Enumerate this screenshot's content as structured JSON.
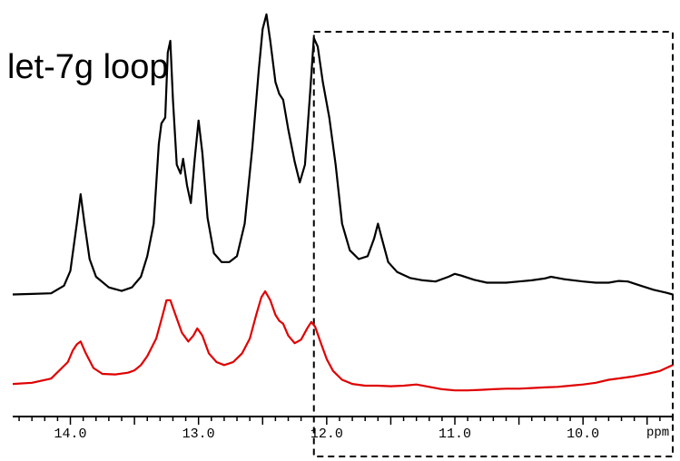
{
  "chart_data": {
    "type": "line",
    "title": "let-7g loop",
    "xlabel": "ppm",
    "ylabel": "",
    "x_reversed": true,
    "xlim": [
      14.45,
      9.3
    ],
    "grid": false,
    "legend": "none",
    "x_ticks": [
      {
        "value": 14.0,
        "label": "14.0"
      },
      {
        "value": 13.0,
        "label": "13.0"
      },
      {
        "value": 12.0,
        "label": "12.0"
      },
      {
        "value": 11.0,
        "label": "11.0"
      },
      {
        "value": 10.0,
        "label": "10.0"
      }
    ],
    "highlight_region": {
      "x_from": 12.1,
      "x_to": 9.3,
      "style": "dashed box"
    },
    "series": [
      {
        "color": "#000000",
        "points": [
          [
            14.45,
            0.3
          ],
          [
            14.3,
            0.31
          ],
          [
            14.15,
            0.32
          ],
          [
            14.05,
            0.45
          ],
          [
            14.0,
            0.7
          ],
          [
            13.95,
            1.5
          ],
          [
            13.92,
            2.0
          ],
          [
            13.89,
            1.5
          ],
          [
            13.85,
            0.9
          ],
          [
            13.8,
            0.6
          ],
          [
            13.7,
            0.42
          ],
          [
            13.6,
            0.36
          ],
          [
            13.52,
            0.42
          ],
          [
            13.45,
            0.6
          ],
          [
            13.4,
            0.95
          ],
          [
            13.35,
            1.5
          ],
          [
            13.31,
            2.85
          ],
          [
            13.29,
            3.2
          ],
          [
            13.26,
            3.3
          ],
          [
            13.24,
            4.4
          ],
          [
            13.22,
            4.6
          ],
          [
            13.2,
            3.6
          ],
          [
            13.17,
            2.5
          ],
          [
            13.14,
            2.35
          ],
          [
            13.12,
            2.6
          ],
          [
            13.09,
            2.15
          ],
          [
            13.06,
            1.85
          ],
          [
            13.03,
            2.6
          ],
          [
            13.0,
            3.25
          ],
          [
            12.97,
            2.7
          ],
          [
            12.93,
            1.6
          ],
          [
            12.88,
            1.0
          ],
          [
            12.82,
            0.85
          ],
          [
            12.76,
            0.85
          ],
          [
            12.7,
            0.95
          ],
          [
            12.64,
            1.5
          ],
          [
            12.58,
            2.8
          ],
          [
            12.53,
            4.1
          ],
          [
            12.5,
            4.8
          ],
          [
            12.47,
            5.05
          ],
          [
            12.44,
            4.6
          ],
          [
            12.4,
            3.9
          ],
          [
            12.37,
            3.7
          ],
          [
            12.34,
            3.6
          ],
          [
            12.3,
            3.1
          ],
          [
            12.25,
            2.55
          ],
          [
            12.21,
            2.2
          ],
          [
            12.17,
            2.5
          ],
          [
            12.13,
            3.7
          ],
          [
            12.1,
            4.65
          ],
          [
            12.07,
            4.5
          ],
          [
            12.03,
            3.9
          ],
          [
            11.98,
            3.3
          ],
          [
            11.93,
            2.5
          ],
          [
            11.88,
            1.5
          ],
          [
            11.82,
            1.05
          ],
          [
            11.75,
            0.9
          ],
          [
            11.68,
            0.95
          ],
          [
            11.63,
            1.25
          ],
          [
            11.6,
            1.5
          ],
          [
            11.57,
            1.25
          ],
          [
            11.52,
            0.85
          ],
          [
            11.45,
            0.68
          ],
          [
            11.35,
            0.58
          ],
          [
            11.25,
            0.54
          ],
          [
            11.15,
            0.52
          ],
          [
            11.05,
            0.6
          ],
          [
            11.0,
            0.65
          ],
          [
            10.95,
            0.62
          ],
          [
            10.85,
            0.55
          ],
          [
            10.75,
            0.5
          ],
          [
            10.6,
            0.5
          ],
          [
            10.5,
            0.52
          ],
          [
            10.4,
            0.54
          ],
          [
            10.3,
            0.57
          ],
          [
            10.25,
            0.6
          ],
          [
            10.15,
            0.56
          ],
          [
            10.0,
            0.52
          ],
          [
            9.9,
            0.5
          ],
          [
            9.8,
            0.5
          ],
          [
            9.72,
            0.53
          ],
          [
            9.65,
            0.52
          ],
          [
            9.55,
            0.45
          ],
          [
            9.45,
            0.38
          ],
          [
            9.35,
            0.33
          ],
          [
            9.3,
            0.3
          ]
        ]
      },
      {
        "color": "#e00000",
        "points": [
          [
            14.45,
            0.03
          ],
          [
            14.3,
            0.05
          ],
          [
            14.15,
            0.12
          ],
          [
            14.02,
            0.4
          ],
          [
            13.98,
            0.6
          ],
          [
            13.95,
            0.7
          ],
          [
            13.92,
            0.75
          ],
          [
            13.88,
            0.55
          ],
          [
            13.82,
            0.3
          ],
          [
            13.75,
            0.2
          ],
          [
            13.65,
            0.19
          ],
          [
            13.55,
            0.22
          ],
          [
            13.5,
            0.26
          ],
          [
            13.45,
            0.35
          ],
          [
            13.4,
            0.5
          ],
          [
            13.33,
            0.8
          ],
          [
            13.28,
            1.2
          ],
          [
            13.25,
            1.45
          ],
          [
            13.22,
            1.45
          ],
          [
            13.18,
            1.2
          ],
          [
            13.13,
            0.9
          ],
          [
            13.08,
            0.75
          ],
          [
            13.04,
            0.85
          ],
          [
            13.01,
            0.97
          ],
          [
            12.97,
            0.85
          ],
          [
            12.92,
            0.55
          ],
          [
            12.86,
            0.4
          ],
          [
            12.8,
            0.35
          ],
          [
            12.73,
            0.4
          ],
          [
            12.66,
            0.55
          ],
          [
            12.6,
            0.8
          ],
          [
            12.55,
            1.2
          ],
          [
            12.51,
            1.5
          ],
          [
            12.48,
            1.6
          ],
          [
            12.44,
            1.45
          ],
          [
            12.4,
            1.2
          ],
          [
            12.37,
            1.1
          ],
          [
            12.34,
            1.05
          ],
          [
            12.3,
            0.85
          ],
          [
            12.25,
            0.72
          ],
          [
            12.2,
            0.78
          ],
          [
            12.15,
            0.98
          ],
          [
            12.12,
            1.08
          ],
          [
            12.09,
            1.0
          ],
          [
            12.05,
            0.75
          ],
          [
            12.0,
            0.45
          ],
          [
            11.95,
            0.25
          ],
          [
            11.88,
            0.1
          ],
          [
            11.8,
            0.03
          ],
          [
            11.7,
            0.0
          ],
          [
            11.6,
            0.0
          ],
          [
            11.5,
            -0.01
          ],
          [
            11.4,
            0.0
          ],
          [
            11.3,
            0.02
          ],
          [
            11.2,
            -0.02
          ],
          [
            11.1,
            -0.06
          ],
          [
            11.0,
            -0.08
          ],
          [
            10.9,
            -0.08
          ],
          [
            10.8,
            -0.07
          ],
          [
            10.7,
            -0.06
          ],
          [
            10.6,
            -0.05
          ],
          [
            10.5,
            -0.05
          ],
          [
            10.4,
            -0.04
          ],
          [
            10.3,
            -0.03
          ],
          [
            10.2,
            -0.02
          ],
          [
            10.1,
            0.0
          ],
          [
            10.0,
            0.02
          ],
          [
            9.9,
            0.05
          ],
          [
            9.8,
            0.1
          ],
          [
            9.7,
            0.13
          ],
          [
            9.6,
            0.16
          ],
          [
            9.5,
            0.2
          ],
          [
            9.4,
            0.25
          ],
          [
            9.35,
            0.3
          ],
          [
            9.3,
            0.35
          ]
        ]
      }
    ]
  }
}
